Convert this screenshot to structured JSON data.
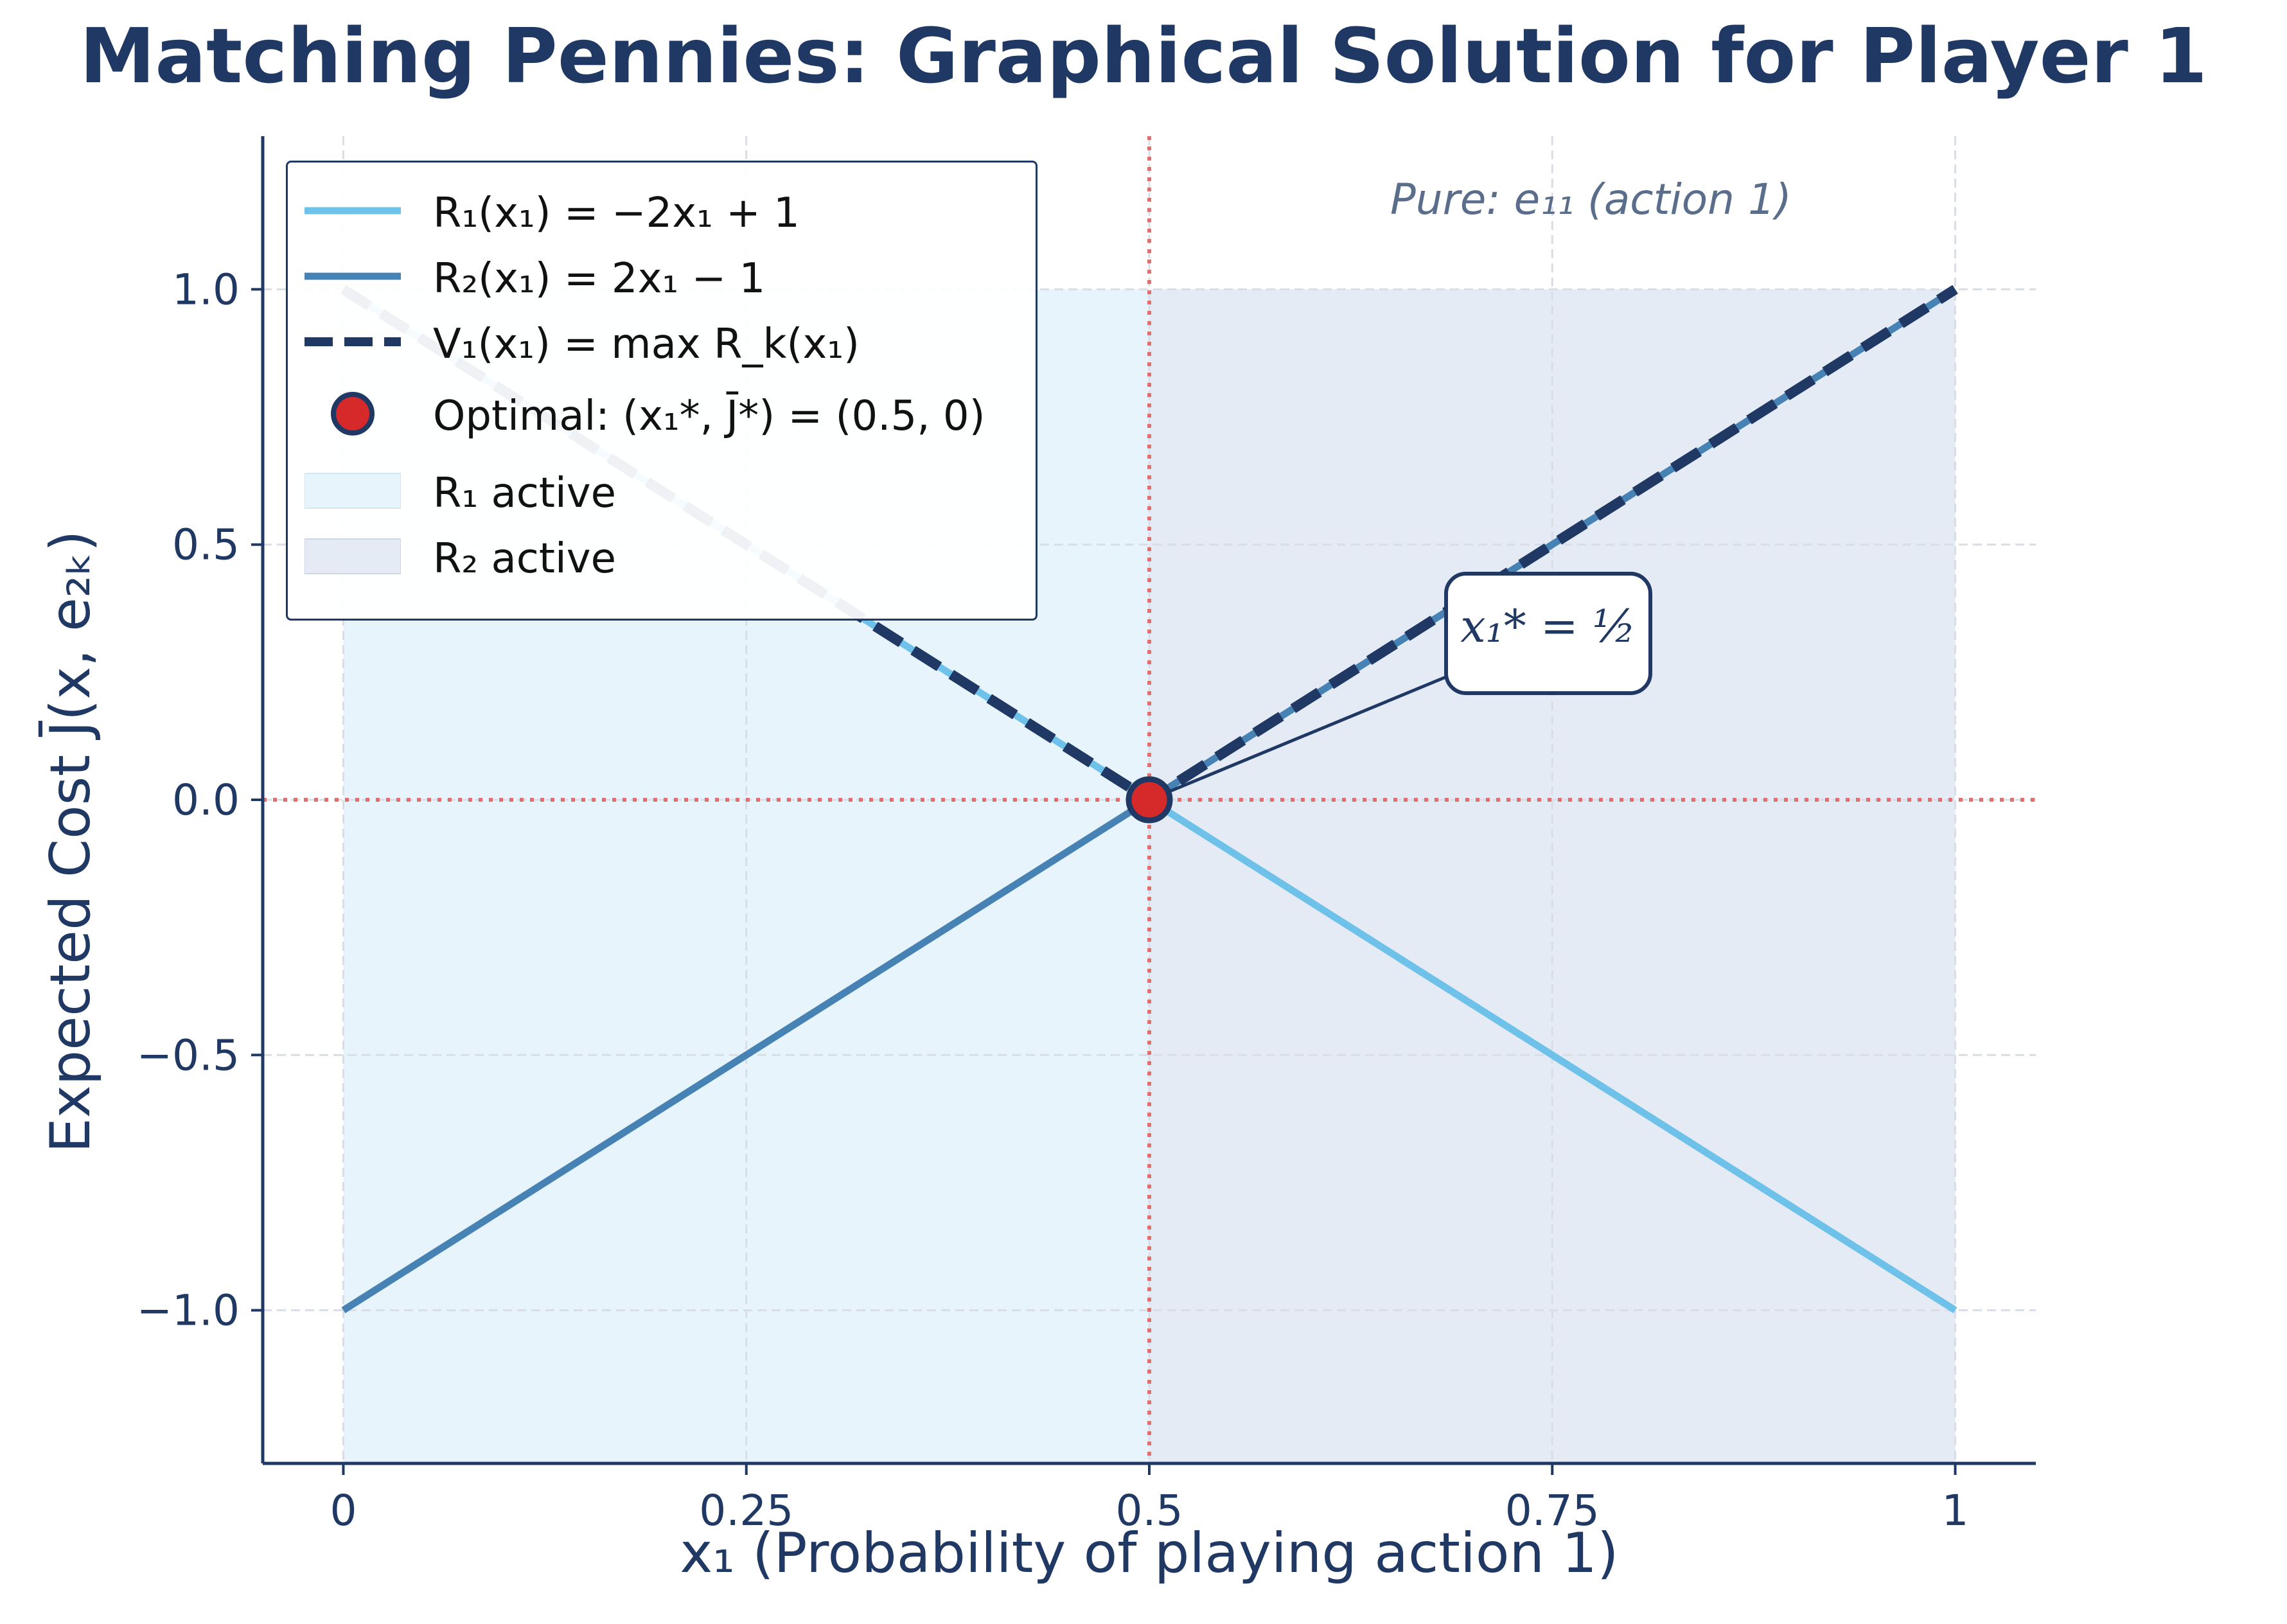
{
  "chart_data": {
    "type": "line",
    "title": "Matching Pennies: Graphical Solution for Player 1",
    "xlabel": "x₁ (Probability of playing action 1)",
    "ylabel": "Expected Cost J̄(x, e₂ₖ)",
    "xlim": [
      -0.05,
      1.05
    ],
    "ylim": [
      -1.3,
      1.3
    ],
    "x_ticks": [
      0,
      0.25,
      0.5,
      0.75,
      1
    ],
    "x_tick_labels": [
      "0",
      "0.25",
      "0.5",
      "0.75",
      "1"
    ],
    "y_ticks": [
      -1.0,
      -0.5,
      0.0,
      0.5,
      1.0
    ],
    "y_tick_labels": [
      "−1.0",
      "−0.5",
      "0.0",
      "0.5",
      "1.0"
    ],
    "grid": true,
    "legend_placement": "top-left",
    "series": [
      {
        "name": "R₁(x₁) = −2x₁ + 1",
        "x": [
          0,
          1
        ],
        "y": [
          1,
          -1
        ],
        "color": "#6ec1e8",
        "style": "solid"
      },
      {
        "name": "R₂(x₁) = 2x₁ − 1",
        "x": [
          0,
          1
        ],
        "y": [
          -1,
          1
        ],
        "color": "#4682b4",
        "style": "solid"
      },
      {
        "name": "V₁(x₁) = max R_k(x₁)",
        "x": [
          0,
          0.5,
          1
        ],
        "y": [
          1,
          0,
          1
        ],
        "color": "#1f3864",
        "style": "dashed"
      }
    ],
    "optimal_point": {
      "name": "Optimal: (x₁*, J̄*) = (0.5, 0)",
      "x": 0.5,
      "y": 0,
      "color": "#d62a2a"
    },
    "regions": [
      {
        "name": "R₁ active",
        "x_range": [
          0,
          0.5
        ],
        "color": "#e8f4fb"
      },
      {
        "name": "R₂ active",
        "x_range": [
          0.5,
          1
        ],
        "color": "#e4ebf4"
      }
    ],
    "reference_lines": {
      "x": 0.5,
      "y": 0,
      "color": "#e07070"
    },
    "annotations": {
      "optimum": "x₁* = ½",
      "right_region": "Pure: e₁₁ (action 1)"
    }
  },
  "colors": {
    "axis": "#1f3864",
    "text": "#1f3864",
    "grid": "#d8dde6"
  }
}
